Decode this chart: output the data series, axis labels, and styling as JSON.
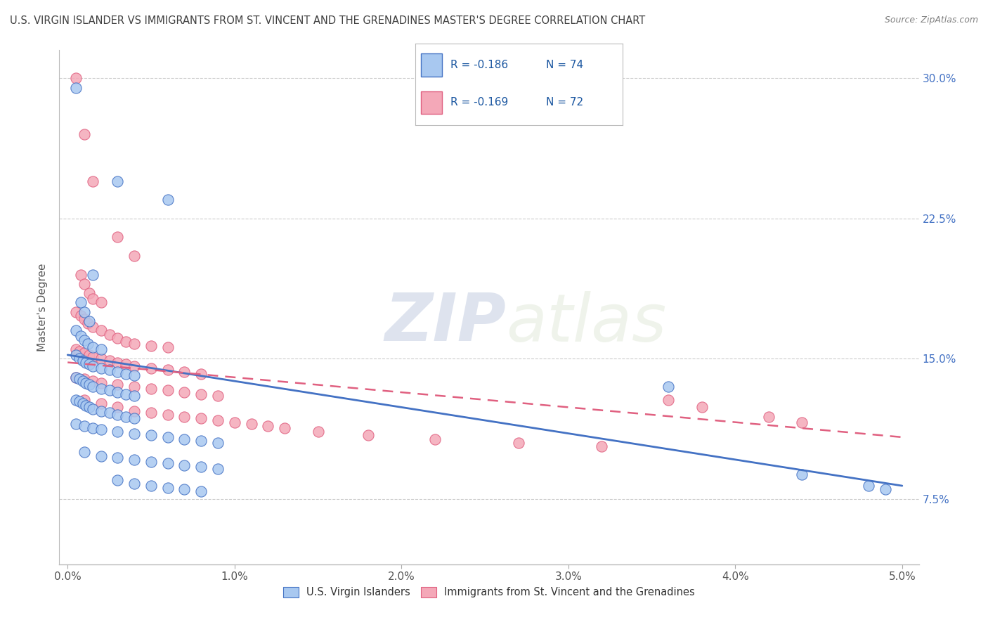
{
  "title": "U.S. VIRGIN ISLANDER VS IMMIGRANTS FROM ST. VINCENT AND THE GRENADINES MASTER'S DEGREE CORRELATION CHART",
  "source": "Source: ZipAtlas.com",
  "ylabel": "Master's Degree",
  "ymin": 0.04,
  "ymax": 0.315,
  "xmin": -0.0005,
  "xmax": 0.051,
  "xtick_max": 0.05,
  "watermark_zip": "ZIP",
  "watermark_atlas": "atlas",
  "legend_r1": "R = -0.186",
  "legend_n1": "N = 74",
  "legend_r2": "R = -0.169",
  "legend_n2": "N = 72",
  "color_blue": "#a8c8f0",
  "color_pink": "#f4a8b8",
  "line_color_blue": "#4472c4",
  "line_color_pink": "#e06080",
  "label1": "U.S. Virgin Islanders",
  "label2": "Immigrants from St. Vincent and the Grenadines",
  "title_color": "#404040",
  "source_color": "#808080",
  "tick_color_blue": "#4472c4",
  "grid_color": "#cccccc",
  "blue_scatter": [
    [
      0.0005,
      0.295
    ],
    [
      0.003,
      0.245
    ],
    [
      0.006,
      0.235
    ],
    [
      0.0015,
      0.195
    ],
    [
      0.0008,
      0.18
    ],
    [
      0.001,
      0.175
    ],
    [
      0.0013,
      0.17
    ],
    [
      0.0005,
      0.165
    ],
    [
      0.0008,
      0.162
    ],
    [
      0.001,
      0.16
    ],
    [
      0.0012,
      0.158
    ],
    [
      0.0015,
      0.156
    ],
    [
      0.002,
      0.155
    ],
    [
      0.0005,
      0.152
    ],
    [
      0.0007,
      0.15
    ],
    [
      0.0009,
      0.149
    ],
    [
      0.0011,
      0.148
    ],
    [
      0.0013,
      0.147
    ],
    [
      0.0015,
      0.146
    ],
    [
      0.002,
      0.145
    ],
    [
      0.0025,
      0.144
    ],
    [
      0.003,
      0.143
    ],
    [
      0.0035,
      0.142
    ],
    [
      0.004,
      0.141
    ],
    [
      0.0005,
      0.14
    ],
    [
      0.0007,
      0.139
    ],
    [
      0.0009,
      0.138
    ],
    [
      0.0011,
      0.137
    ],
    [
      0.0013,
      0.136
    ],
    [
      0.0015,
      0.135
    ],
    [
      0.002,
      0.134
    ],
    [
      0.0025,
      0.133
    ],
    [
      0.003,
      0.132
    ],
    [
      0.0035,
      0.131
    ],
    [
      0.004,
      0.13
    ],
    [
      0.0005,
      0.128
    ],
    [
      0.0007,
      0.127
    ],
    [
      0.0009,
      0.126
    ],
    [
      0.0011,
      0.125
    ],
    [
      0.0013,
      0.124
    ],
    [
      0.0015,
      0.123
    ],
    [
      0.002,
      0.122
    ],
    [
      0.0025,
      0.121
    ],
    [
      0.003,
      0.12
    ],
    [
      0.0035,
      0.119
    ],
    [
      0.004,
      0.118
    ],
    [
      0.0005,
      0.115
    ],
    [
      0.001,
      0.114
    ],
    [
      0.0015,
      0.113
    ],
    [
      0.002,
      0.112
    ],
    [
      0.003,
      0.111
    ],
    [
      0.004,
      0.11
    ],
    [
      0.005,
      0.109
    ],
    [
      0.006,
      0.108
    ],
    [
      0.007,
      0.107
    ],
    [
      0.008,
      0.106
    ],
    [
      0.009,
      0.105
    ],
    [
      0.001,
      0.1
    ],
    [
      0.002,
      0.098
    ],
    [
      0.003,
      0.097
    ],
    [
      0.004,
      0.096
    ],
    [
      0.005,
      0.095
    ],
    [
      0.006,
      0.094
    ],
    [
      0.007,
      0.093
    ],
    [
      0.008,
      0.092
    ],
    [
      0.009,
      0.091
    ],
    [
      0.003,
      0.085
    ],
    [
      0.004,
      0.083
    ],
    [
      0.005,
      0.082
    ],
    [
      0.006,
      0.081
    ],
    [
      0.007,
      0.08
    ],
    [
      0.008,
      0.079
    ],
    [
      0.036,
      0.135
    ],
    [
      0.044,
      0.088
    ],
    [
      0.048,
      0.082
    ],
    [
      0.049,
      0.08
    ]
  ],
  "pink_scatter": [
    [
      0.0005,
      0.3
    ],
    [
      0.001,
      0.27
    ],
    [
      0.0015,
      0.245
    ],
    [
      0.003,
      0.215
    ],
    [
      0.004,
      0.205
    ],
    [
      0.0008,
      0.195
    ],
    [
      0.001,
      0.19
    ],
    [
      0.0013,
      0.185
    ],
    [
      0.0015,
      0.182
    ],
    [
      0.002,
      0.18
    ],
    [
      0.0005,
      0.175
    ],
    [
      0.0008,
      0.173
    ],
    [
      0.001,
      0.171
    ],
    [
      0.0012,
      0.169
    ],
    [
      0.0015,
      0.167
    ],
    [
      0.002,
      0.165
    ],
    [
      0.0025,
      0.163
    ],
    [
      0.003,
      0.161
    ],
    [
      0.0035,
      0.159
    ],
    [
      0.004,
      0.158
    ],
    [
      0.005,
      0.157
    ],
    [
      0.006,
      0.156
    ],
    [
      0.0005,
      0.155
    ],
    [
      0.0007,
      0.154
    ],
    [
      0.001,
      0.153
    ],
    [
      0.0013,
      0.152
    ],
    [
      0.0015,
      0.151
    ],
    [
      0.002,
      0.15
    ],
    [
      0.0025,
      0.149
    ],
    [
      0.003,
      0.148
    ],
    [
      0.0035,
      0.147
    ],
    [
      0.004,
      0.146
    ],
    [
      0.005,
      0.145
    ],
    [
      0.006,
      0.144
    ],
    [
      0.007,
      0.143
    ],
    [
      0.008,
      0.142
    ],
    [
      0.0005,
      0.14
    ],
    [
      0.001,
      0.139
    ],
    [
      0.0015,
      0.138
    ],
    [
      0.002,
      0.137
    ],
    [
      0.003,
      0.136
    ],
    [
      0.004,
      0.135
    ],
    [
      0.005,
      0.134
    ],
    [
      0.006,
      0.133
    ],
    [
      0.007,
      0.132
    ],
    [
      0.008,
      0.131
    ],
    [
      0.009,
      0.13
    ],
    [
      0.001,
      0.128
    ],
    [
      0.002,
      0.126
    ],
    [
      0.003,
      0.124
    ],
    [
      0.004,
      0.122
    ],
    [
      0.005,
      0.121
    ],
    [
      0.006,
      0.12
    ],
    [
      0.007,
      0.119
    ],
    [
      0.008,
      0.118
    ],
    [
      0.009,
      0.117
    ],
    [
      0.01,
      0.116
    ],
    [
      0.011,
      0.115
    ],
    [
      0.012,
      0.114
    ],
    [
      0.013,
      0.113
    ],
    [
      0.015,
      0.111
    ],
    [
      0.018,
      0.109
    ],
    [
      0.022,
      0.107
    ],
    [
      0.027,
      0.105
    ],
    [
      0.032,
      0.103
    ],
    [
      0.036,
      0.128
    ],
    [
      0.038,
      0.124
    ],
    [
      0.042,
      0.119
    ],
    [
      0.044,
      0.116
    ]
  ],
  "blue_trendline": [
    [
      0.0,
      0.152
    ],
    [
      0.05,
      0.082
    ]
  ],
  "pink_trendline": [
    [
      0.0,
      0.148
    ],
    [
      0.05,
      0.108
    ]
  ]
}
